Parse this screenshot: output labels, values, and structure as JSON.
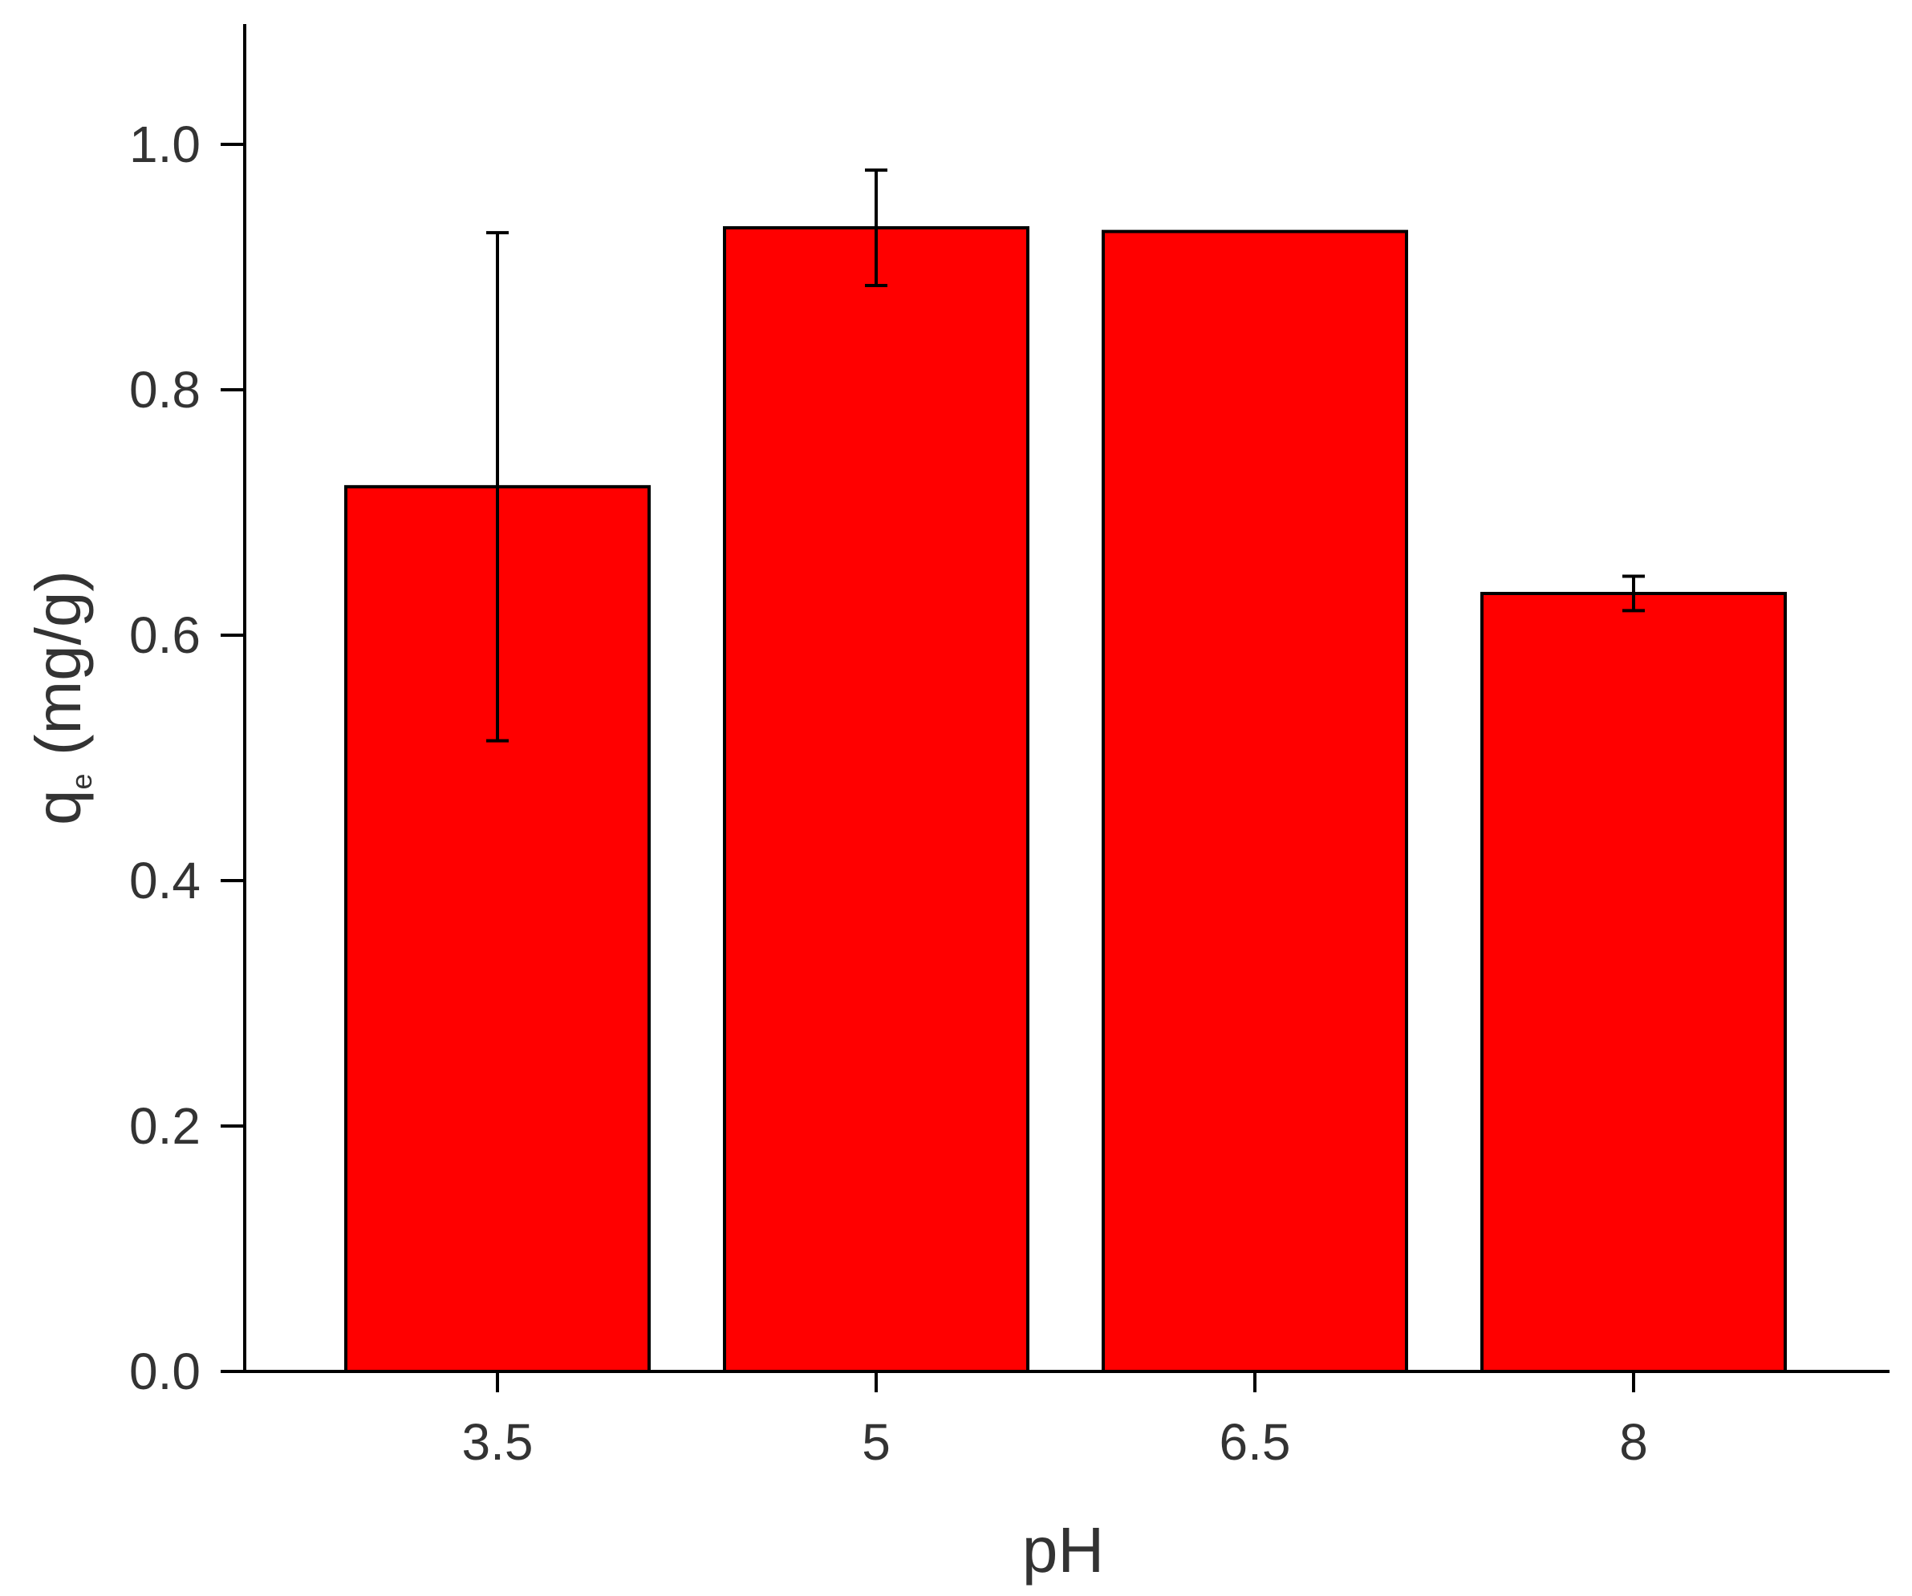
{
  "chart_data": {
    "type": "bar",
    "categories": [
      "3.5",
      "5",
      "6.5",
      "8"
    ],
    "values": [
      0.721,
      0.932,
      0.929,
      0.634
    ],
    "error": [
      0.207,
      0.047,
      0,
      0.014
    ],
    "xlabel": "pH",
    "ylabel_main": "q",
    "ylabel_sub": "e",
    "ylabel_unit": " (mg/g)",
    "ylim": [
      0,
      1.1
    ],
    "yticks": [
      "0.0",
      "0.2",
      "0.4",
      "0.6",
      "0.8",
      "1.0"
    ],
    "grid": false,
    "colors": {
      "bar": "#ff0000",
      "stroke": "#000000"
    }
  }
}
